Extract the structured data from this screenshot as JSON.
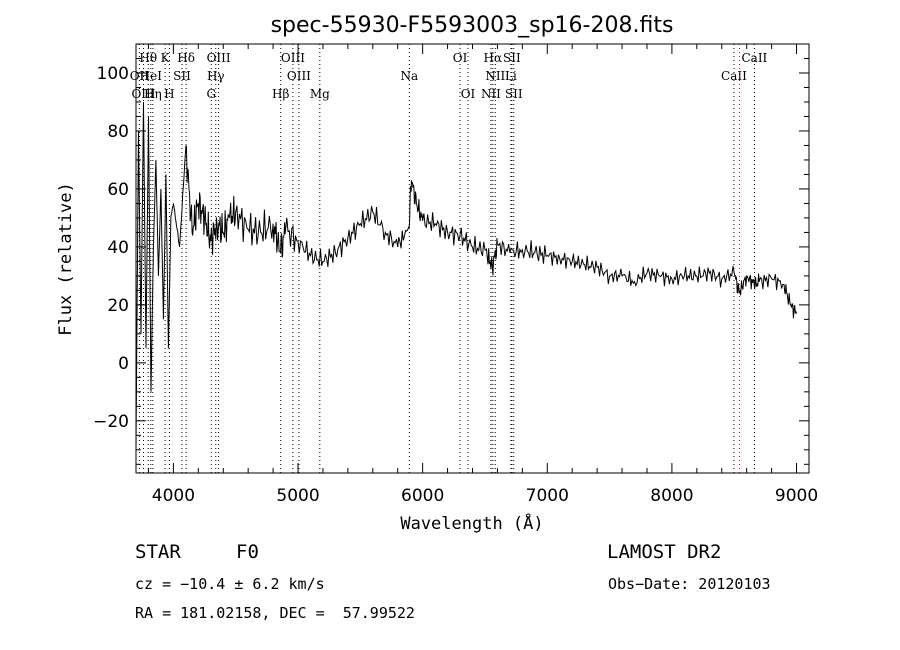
{
  "chart_data": {
    "type": "line",
    "title": "spec-55930-F5593003_sp16-208.fits",
    "xlabel": "Wavelength (Å)",
    "ylabel": "Flux (relative)",
    "xlim": [
      3700,
      9100
    ],
    "ylim": [
      -38,
      110
    ],
    "xticks": [
      4000,
      5000,
      6000,
      7000,
      8000,
      9000
    ],
    "yticks": [
      -20,
      0,
      20,
      40,
      60,
      80,
      100
    ],
    "series": [
      {
        "color": "#000000",
        "x": [
          3700,
          3720,
          3740,
          3760,
          3780,
          3800,
          3820,
          3840,
          3860,
          3880,
          3900,
          3920,
          3940,
          3960,
          3980,
          4000,
          4050,
          4100,
          4150,
          4200,
          4250,
          4300,
          4350,
          4400,
          4450,
          4500,
          4600,
          4700,
          4800,
          4860,
          4900,
          5000,
          5100,
          5200,
          5300,
          5400,
          5500,
          5600,
          5700,
          5800,
          5890,
          5910,
          5950,
          6000,
          6100,
          6200,
          6300,
          6400,
          6500,
          6560,
          6600,
          6700,
          6800,
          6900,
          7000,
          7100,
          7200,
          7300,
          7400,
          7500,
          7600,
          7700,
          7800,
          7900,
          8000,
          8100,
          8200,
          8300,
          8400,
          8500,
          8540,
          8600,
          8660,
          8700,
          8800,
          8900,
          8950,
          9000
        ],
        "y": [
          -30,
          80,
          10,
          90,
          5,
          85,
          -10,
          40,
          70,
          30,
          60,
          15,
          65,
          5,
          50,
          55,
          40,
          75,
          45,
          55,
          50,
          42,
          48,
          45,
          50,
          52,
          46,
          45,
          48,
          38,
          46,
          42,
          37,
          35,
          38,
          43,
          48,
          52,
          45,
          40,
          47,
          63,
          55,
          49,
          48,
          45,
          44,
          40,
          39,
          33,
          41,
          38,
          39,
          38,
          37,
          36,
          35,
          34,
          33,
          30,
          30,
          28,
          31,
          30,
          29,
          30,
          30,
          31,
          29,
          31,
          24,
          30,
          27,
          28,
          29,
          27,
          20,
          17
        ]
      }
    ],
    "lines": [
      {
        "label": "Hθ",
        "wave": 3798,
        "row": 0,
        "color": "#000000"
      },
      {
        "label": "K",
        "wave": 3934,
        "row": 0,
        "color": "#000000"
      },
      {
        "label": "Hδ",
        "wave": 4102,
        "row": 0,
        "color": "#000000"
      },
      {
        "label": "OIII",
        "wave": 4363,
        "row": 0,
        "color": "#000000"
      },
      {
        "label": "OIII",
        "wave": 4959,
        "row": 0,
        "color": "#000000"
      },
      {
        "label": "OI",
        "wave": 6300,
        "row": 0,
        "color": "#000000"
      },
      {
        "label": "Hα",
        "wave": 6563,
        "row": 0,
        "color": "#000000"
      },
      {
        "label": "SII",
        "wave": 6716,
        "row": 0,
        "color": "#000000"
      },
      {
        "label": "CaII",
        "wave": 8662,
        "row": 0,
        "color": "#000000"
      },
      {
        "label": "OII",
        "wave": 3727,
        "row": 1,
        "color": "#000000"
      },
      {
        "label": "HeI",
        "wave": 3819,
        "row": 1,
        "color": "#000000"
      },
      {
        "label": "SII",
        "wave": 4069,
        "row": 1,
        "color": "#000000"
      },
      {
        "label": "Hγ",
        "wave": 4340,
        "row": 1,
        "color": "#000000"
      },
      {
        "label": "OIII",
        "wave": 5007,
        "row": 1,
        "color": "#000000"
      },
      {
        "label": "Na",
        "wave": 5893,
        "row": 1,
        "color": "#000000"
      },
      {
        "label": "NII",
        "wave": 6583,
        "row": 1,
        "color": "#000000"
      },
      {
        "label": "Li",
        "wave": 6708,
        "row": 1,
        "color": "#000000"
      },
      {
        "label": "CaII",
        "wave": 8498,
        "row": 1,
        "color": "#000000"
      },
      {
        "label": "OIII",
        "wave": 3760,
        "row": 2,
        "color": "#000000"
      },
      {
        "label": "Hη",
        "wave": 3835,
        "row": 2,
        "color": "#000000"
      },
      {
        "label": "H",
        "wave": 3968,
        "row": 2,
        "color": "#000000"
      },
      {
        "label": "G",
        "wave": 4304,
        "row": 2,
        "color": "#000000"
      },
      {
        "label": "Hβ",
        "wave": 4861,
        "row": 2,
        "color": "#000000"
      },
      {
        "label": "Mg",
        "wave": 5175,
        "row": 2,
        "color": "#000000"
      },
      {
        "label": "OI",
        "wave": 6364,
        "row": 2,
        "color": "#000000"
      },
      {
        "label": "NII",
        "wave": 6548,
        "row": 2,
        "color": "#000000"
      },
      {
        "label": "SII",
        "wave": 6731,
        "row": 2,
        "color": "#000000"
      },
      {
        "label": "",
        "wave": 8542,
        "row": 2,
        "color": "#ff0000"
      }
    ],
    "grid": false
  },
  "info": {
    "object_class": "STAR",
    "subclass": "F0",
    "survey": "LAMOST DR2",
    "cz_text": "cz = −10.4 ± 6.2 km/s",
    "obs_date_text": "Obs−Date: 20120103",
    "radec_text": "RA = 181.02158, DEC =  57.99522"
  }
}
